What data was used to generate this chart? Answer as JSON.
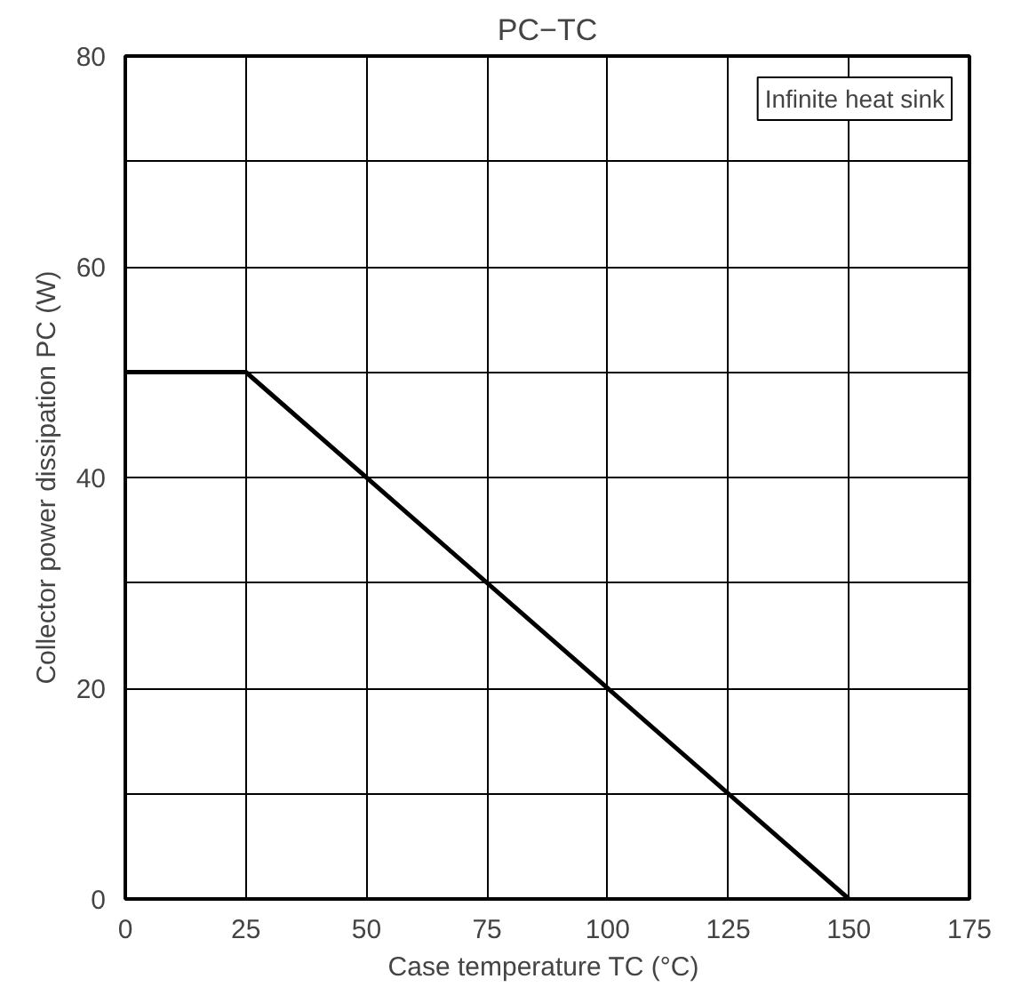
{
  "chart_data": {
    "type": "line",
    "title": "PC−TC",
    "xlabel": "Case temperature  TC (°C)",
    "ylabel": "Collector power dissipation PC (W)",
    "annotations": [
      "Infinite heat sink"
    ],
    "x": [
      0,
      25,
      150
    ],
    "series": [
      {
        "color": "#000000",
        "values": [
          50,
          50,
          0
        ]
      }
    ],
    "xlim": [
      0,
      175
    ],
    "xticks": [
      0,
      25,
      50,
      75,
      100,
      125,
      150,
      175
    ],
    "ylim": [
      0,
      80
    ],
    "yticks": [
      0,
      {
        "value": 10,
        "label": null
      },
      20,
      {
        "value": 30,
        "label": null
      },
      40,
      {
        "value": 50,
        "label": null
      },
      60,
      {
        "value": 70,
        "label": null
      },
      80
    ],
    "grid": true,
    "marker": "none",
    "line_style": "solid"
  }
}
